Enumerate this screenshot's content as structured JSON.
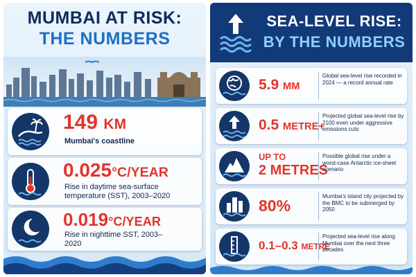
{
  "left": {
    "title_line1": "MUMBAI AT RISK:",
    "title_line2": "THE NUMBERS",
    "stats": [
      {
        "value": "149",
        "unit": "KM",
        "description": "Mumbai's coastline"
      },
      {
        "value": "0.025",
        "unit": "°C/YEAR",
        "description": "Rise in daytime sea-surface temperature (SST), 2003–2020"
      },
      {
        "value": "0.019",
        "unit": "°C/YEAR",
        "description": "Rise in nighttime SST, 2003–2020"
      }
    ]
  },
  "right": {
    "title_line1": "SEA-LEVEL RISE:",
    "title_line2": "BY THE NUMBERS",
    "stats": [
      {
        "value": "5.9",
        "unit": "MM",
        "description": "Global sea-level rise recorded in 2024 — a record annual rate"
      },
      {
        "value": "0.5",
        "unit": "METRE+",
        "description": "Projected global sea-level rise by 2100 even under aggressive emissions cuts"
      },
      {
        "prefix": "UP TO",
        "value": "2 METRES",
        "description": "Possible global rise under a worst-case Antarctic ice-sheet scenario"
      },
      {
        "value": "80%",
        "description": "Mumbai's island city projected by the BMC to be submerged by 2050"
      },
      {
        "value": "0.1–0.3",
        "unit": "METRE",
        "description": "Projected sea-level rise along Mumbai over the next three decades"
      }
    ]
  }
}
